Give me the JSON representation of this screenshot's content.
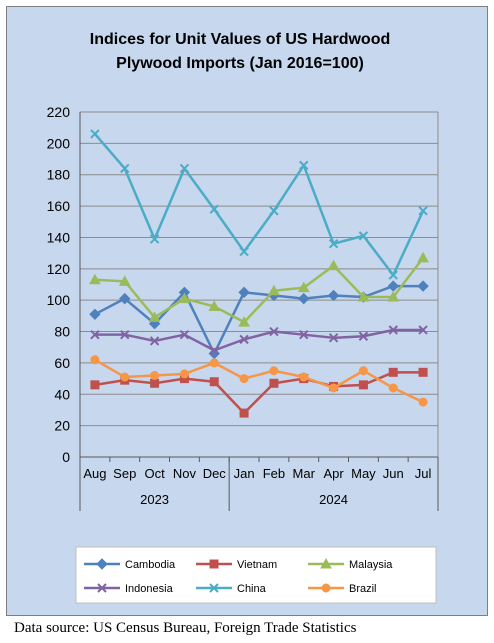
{
  "chart_data": {
    "type": "line",
    "title_line1": "Indices for Unit Values of US Hardwood",
    "title_line2": "Plywood Imports (Jan 2016=100)",
    "categories": [
      "Aug",
      "Sep",
      "Oct",
      "Nov",
      "Dec",
      "Jan",
      "Feb",
      "Mar",
      "Apr",
      "May",
      "Jun",
      "Jul"
    ],
    "groups": [
      {
        "label": "2023",
        "from": 0,
        "to": 4
      },
      {
        "label": "2024",
        "from": 5,
        "to": 11
      }
    ],
    "ylim": [
      0,
      220
    ],
    "yticks": [
      0,
      20,
      40,
      60,
      80,
      100,
      120,
      140,
      160,
      180,
      200,
      220
    ],
    "series": [
      {
        "name": "Cambodia",
        "color": "#4f81bd",
        "marker": "diamond",
        "values": [
          91,
          101,
          85,
          105,
          66,
          105,
          103,
          101,
          103,
          102,
          109,
          109
        ]
      },
      {
        "name": "Vietnam",
        "color": "#c0504d",
        "marker": "square",
        "values": [
          46,
          49,
          47,
          50,
          48,
          28,
          47,
          50,
          45,
          46,
          54,
          54
        ]
      },
      {
        "name": "Malaysia",
        "color": "#9bbb59",
        "marker": "triangle",
        "values": [
          113,
          112,
          89,
          101,
          96,
          86,
          106,
          108,
          122,
          102,
          102,
          127
        ]
      },
      {
        "name": "Indonesia",
        "color": "#8064a2",
        "marker": "x",
        "values": [
          78,
          78,
          74,
          78,
          68,
          75,
          80,
          78,
          76,
          77,
          81,
          81
        ]
      },
      {
        "name": "China",
        "color": "#4bacc6",
        "marker": "x",
        "values": [
          206,
          184,
          139,
          184,
          158,
          131,
          157,
          186,
          136,
          141,
          116,
          157
        ]
      },
      {
        "name": "Brazil",
        "color": "#f79646",
        "marker": "circle",
        "values": [
          62,
          51,
          52,
          53,
          60,
          50,
          55,
          51,
          44,
          55,
          44,
          35
        ]
      }
    ]
  },
  "footer": {
    "source": "Data source: US Census Bureau, Foreign Trade Statistics"
  }
}
